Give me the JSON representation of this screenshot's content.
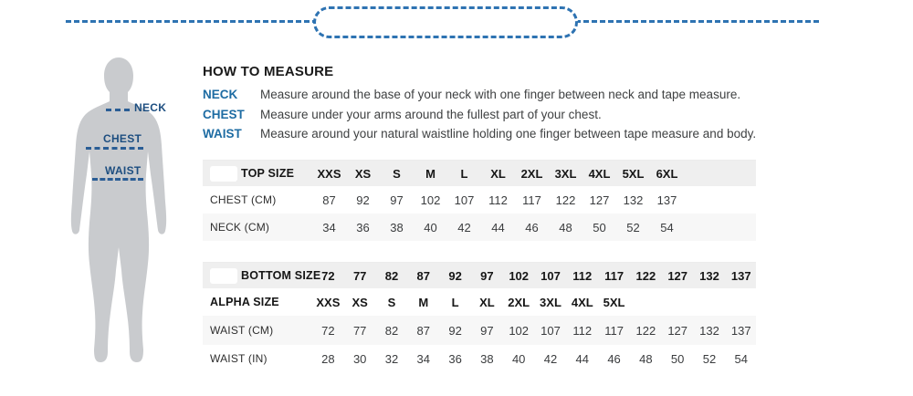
{
  "colors": {
    "accent_blue": "#1e6ca3",
    "dash_blue": "#2e73b2",
    "figure_label_blue": "#1d4e80",
    "figure_gray": "#c9cbce",
    "header_band_gray": "#efefef",
    "alt_row_gray": "#f7f7f7",
    "body_text": "#3f4142"
  },
  "figure": {
    "neck_label": "NECK",
    "chest_label": "CHEST",
    "waist_label": "WAIST"
  },
  "how_to": {
    "title": "HOW TO MEASURE",
    "items": [
      {
        "label": "NECK",
        "text": "Measure around the base of your neck with one finger between neck and tape measure."
      },
      {
        "label": "CHEST",
        "text": "Measure under your arms around the fullest part of your chest."
      },
      {
        "label": "WAIST",
        "text": "Measure around your natural waistline holding one finger between tape measure and body."
      }
    ]
  },
  "top_table": {
    "header_label": "TOP SIZE",
    "sizes": [
      "XXS",
      "XS",
      "S",
      "M",
      "L",
      "XL",
      "2XL",
      "3XL",
      "4XL",
      "5XL",
      "6XL"
    ],
    "rows": [
      {
        "label": "CHEST (CM)",
        "values": [
          "87",
          "92",
          "97",
          "102",
          "107",
          "112",
          "117",
          "122",
          "127",
          "132",
          "137"
        ]
      },
      {
        "label": "NECK (CM)",
        "values": [
          "34",
          "36",
          "38",
          "40",
          "42",
          "44",
          "46",
          "48",
          "50",
          "52",
          "54"
        ]
      }
    ]
  },
  "bottom_table": {
    "header_label": "BOTTOM SIZE",
    "sizes": [
      "72",
      "77",
      "82",
      "87",
      "92",
      "97",
      "102",
      "107",
      "112",
      "117",
      "122",
      "127",
      "132",
      "137"
    ],
    "rows": [
      {
        "label": "ALPHA SIZE",
        "values": [
          "XXS",
          "XS",
          "S",
          "M",
          "L",
          "XL",
          "2XL",
          "3XL",
          "4XL",
          "5XL"
        ]
      },
      {
        "label": "WAIST (CM)",
        "values": [
          "72",
          "77",
          "82",
          "87",
          "92",
          "97",
          "102",
          "107",
          "112",
          "117",
          "122",
          "127",
          "132",
          "137"
        ]
      },
      {
        "label": "WAIST (IN)",
        "values": [
          "28",
          "30",
          "32",
          "34",
          "36",
          "38",
          "40",
          "42",
          "44",
          "46",
          "48",
          "50",
          "52",
          "54"
        ]
      }
    ]
  }
}
